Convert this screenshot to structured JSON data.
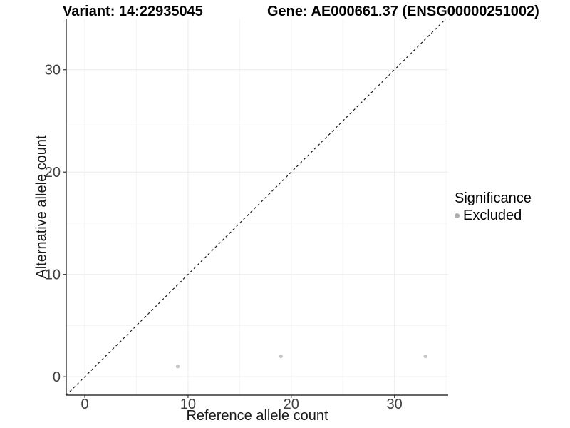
{
  "chart_data": {
    "type": "scatter",
    "title_left": "Variant: 14:22935045",
    "title_right": "Gene: AE000661.37 (ENSG00000251002)",
    "xlabel": "Reference allele count",
    "ylabel": "Alternative allele count",
    "xlim": [
      -1.8,
      35.2
    ],
    "ylim": [
      -1.8,
      35.0
    ],
    "x_ticks": [
      0,
      10,
      20,
      30
    ],
    "y_ticks": [
      0,
      10,
      20,
      30
    ],
    "x_minor_ticks": [
      5,
      15,
      25,
      35
    ],
    "y_minor_ticks": [
      5,
      15,
      25
    ],
    "grid": true,
    "identity_line": {
      "style": "dashed",
      "from": [
        -1.8,
        -1.8
      ],
      "to": [
        35.2,
        35.2
      ]
    },
    "series": [
      {
        "name": "Excluded",
        "color": "#c4c4c4",
        "points": [
          {
            "x": 9,
            "y": 1
          },
          {
            "x": 19,
            "y": 2
          },
          {
            "x": 33,
            "y": 2
          }
        ]
      }
    ],
    "legend": {
      "title": "Significance",
      "position": "right",
      "items": [
        {
          "label": "Excluded",
          "color": "#aeaeae"
        }
      ]
    },
    "colors": {
      "axis_line": "#333333",
      "tick_mark": "#333333",
      "tick_label": "#404040",
      "grid_major": "#ebebeb",
      "grid_minor": "#f5f5f5",
      "dashed_line": "#1a1a1a",
      "background": "#ffffff"
    }
  }
}
